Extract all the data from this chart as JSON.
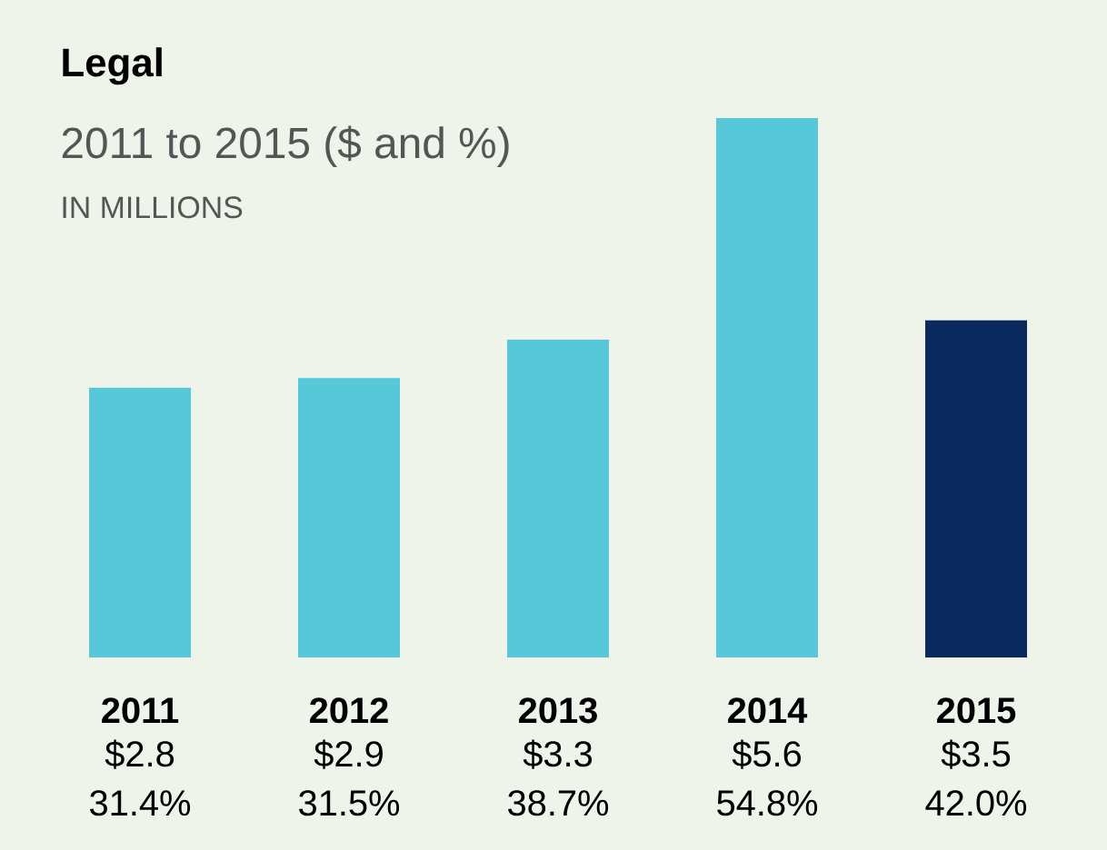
{
  "chart_data": {
    "type": "bar",
    "title": "Legal",
    "subtitle": "2011 to 2015 ($ and %)",
    "categories": [
      "2011",
      "2012",
      "2013",
      "2014",
      "2015"
    ],
    "values": [
      2.8,
      2.9,
      3.3,
      5.6,
      3.5
    ],
    "colors": [
      "#56c8d8",
      "#56c8d8",
      "#56c8d8",
      "#56c8d8",
      "#0a2a5e"
    ],
    "value_labels": [
      "$2.8",
      "$2.9",
      "$3.3",
      "$5.6",
      "$3.5"
    ],
    "annotations": [
      "IN MILLIONS",
      "31.4%",
      "31.5%",
      "38.7%",
      "54.8%",
      "42.0%"
    ]
  }
}
